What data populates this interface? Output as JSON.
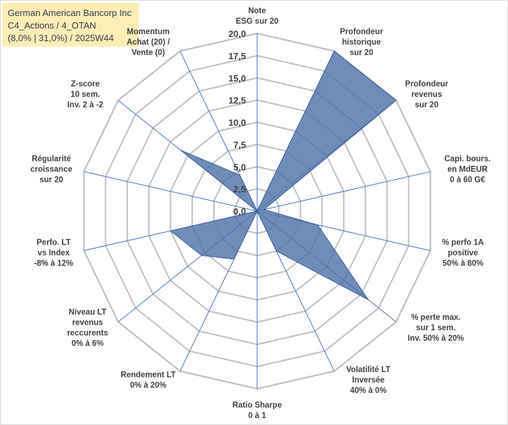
{
  "header": {
    "lines": [
      "German American Bancorp Inc",
      "C4_Actions / 4_OTAN",
      "(8,0% | 31,0%) / 2025W44"
    ]
  },
  "chart_data": {
    "type": "radar",
    "title": "",
    "axes": [
      [
        "Note",
        "ESG sur 20"
      ],
      [
        "Profondeur",
        "historique",
        "sur 20"
      ],
      [
        "Profondeur",
        "revenus",
        "sur 20"
      ],
      [
        "Capi. bours.",
        "en MdEUR",
        "0 à 60 G€"
      ],
      [
        "% perfo 1A",
        "positive",
        "50% à 80%"
      ],
      [
        "% perte max.",
        "sur 1 sem.",
        "Inv. 50% à 20%"
      ],
      [
        "Volatilité LT",
        "Inversée",
        "40% à 0%"
      ],
      [
        "Ratio Sharpe",
        "0 à 1"
      ],
      [
        "Rendement LT",
        "0% à 20%"
      ],
      [
        "Niveau LT",
        "revenus",
        "reccurents",
        "0% à 6%"
      ],
      [
        "Perfo. LT",
        "vs Index",
        "-8% à 12%"
      ],
      [
        "Régularité",
        "croissance",
        "sur 20"
      ],
      [
        "Z-score",
        "10 sem.",
        "Inv. 2 à -2"
      ],
      [
        "Momentum",
        "Achat (20) /",
        "Vente (0)"
      ]
    ],
    "values": [
      0,
      20,
      20,
      0.8,
      7,
      16,
      5,
      0,
      6,
      8,
      10,
      0,
      11,
      4.5
    ],
    "rmin": 0,
    "rmax": 20,
    "ticks": [
      "0,0",
      "2,5",
      "5,0",
      "7,5",
      "10,0",
      "12,5",
      "15,0",
      "17,5",
      "20,0"
    ],
    "series_color": "#4f74a8",
    "grid_color": "#bfbfbf",
    "axis_color": "#4472c4"
  }
}
